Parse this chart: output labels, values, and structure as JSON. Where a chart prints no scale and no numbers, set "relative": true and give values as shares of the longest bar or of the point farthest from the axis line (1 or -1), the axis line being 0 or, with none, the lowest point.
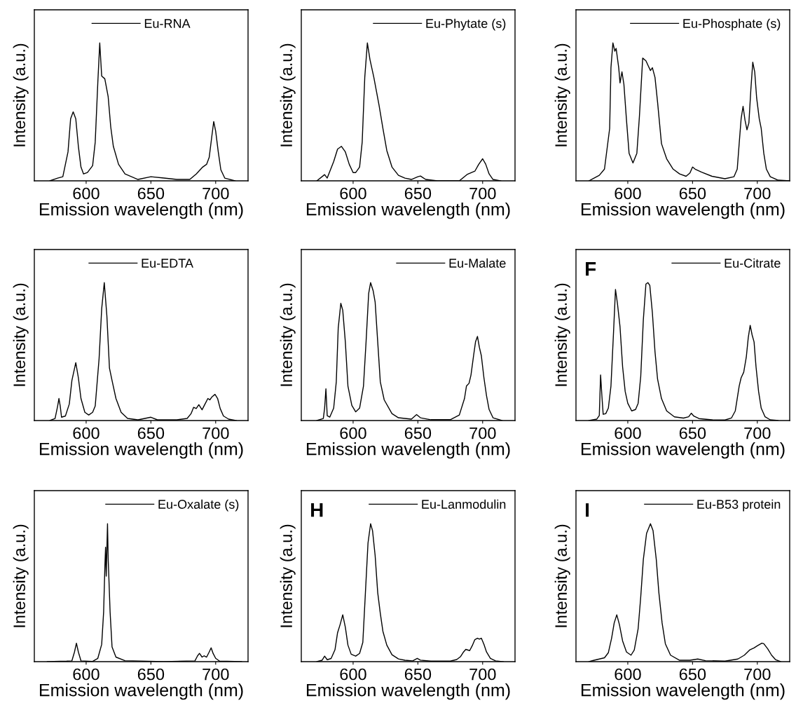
{
  "chart_data": [
    {
      "type": "line",
      "xlabel": "Emission wavelength (nm)",
      "ylabel": "Intensity (a.u.)",
      "relative": true,
      "xlim": [
        560,
        725
      ],
      "xticks": [
        600,
        650,
        700
      ],
      "tick_labels": "x",
      "legend": "top",
      "x": [
        572,
        578,
        582,
        586,
        588,
        590,
        592,
        594,
        596,
        598,
        601,
        605,
        607,
        609,
        610.5,
        612,
        614.4,
        617,
        619,
        621,
        625,
        630,
        640,
        650,
        660,
        670,
        680,
        685,
        690,
        693,
        695,
        697,
        698.5,
        700,
        702,
        704,
        707,
        715
      ],
      "series": [
        {
          "name": "Eu-RNA",
          "color": "#000000",
          "values": [
            0,
            0.02,
            0.03,
            0.21,
            0.45,
            0.5,
            0.45,
            0.25,
            0.1,
            0.05,
            0.06,
            0.11,
            0.28,
            0.71,
            1.0,
            0.76,
            0.74,
            0.61,
            0.39,
            0.25,
            0.12,
            0.05,
            0.01,
            0.03,
            0.02,
            0.01,
            0.01,
            0.05,
            0.1,
            0.12,
            0.17,
            0.32,
            0.43,
            0.36,
            0.21,
            0.08,
            0.02,
            0
          ]
        }
      ]
    },
    {
      "type": "line",
      "xlabel": "Emission wavelength (nm)",
      "ylabel": "Intensity (a.u.)",
      "relative": true,
      "xlim": [
        560,
        725
      ],
      "xticks": [
        600,
        650,
        700
      ],
      "tick_labels": "x",
      "legend": "top right",
      "x": [
        572,
        578,
        580,
        585,
        588,
        591,
        594,
        597,
        600,
        602,
        605,
        607,
        609,
        611,
        613,
        616,
        618,
        620,
        623,
        626,
        630,
        635,
        640,
        645,
        650,
        652,
        656,
        665,
        682,
        688,
        694,
        697,
        700,
        702.4,
        705,
        708,
        714
      ],
      "series": [
        {
          "name": "Eu-Phytate (s)",
          "color": "#000000",
          "values": [
            0,
            0.045,
            0.02,
            0.14,
            0.23,
            0.25,
            0.21,
            0.12,
            0.06,
            0.06,
            0.1,
            0.28,
            0.75,
            1.0,
            0.88,
            0.75,
            0.65,
            0.55,
            0.38,
            0.22,
            0.1,
            0.04,
            0.02,
            0.01,
            0.03,
            0.035,
            0.01,
            0,
            0,
            0.046,
            0.07,
            0.12,
            0.16,
            0.12,
            0.05,
            0.01,
            0
          ]
        }
      ]
    },
    {
      "type": "line",
      "xlabel": "Emission wavelength (nm)",
      "ylabel": "Intensity (a.u.)",
      "relative": true,
      "xlim": [
        560,
        725
      ],
      "xticks": [
        600,
        650,
        700
      ],
      "tick_labels": "x",
      "legend": "top right",
      "x": [
        570,
        578,
        582,
        586,
        587,
        588.5,
        590,
        591,
        593,
        594,
        595.5,
        597,
        599,
        601,
        604,
        607,
        609,
        611.5,
        614,
        616,
        617.5,
        619,
        621,
        623,
        626,
        630,
        635,
        640,
        645,
        648,
        650,
        652,
        657,
        665,
        675,
        682,
        684.5,
        686,
        687.5,
        689,
        690.5,
        692,
        693.5,
        695,
        696.5,
        698,
        699.5,
        701.5,
        703,
        705,
        707,
        710,
        716,
        725
      ],
      "series": [
        {
          "name": "Eu-Phosphate (s)",
          "color": "#000000",
          "values": [
            0,
            0.04,
            0.085,
            0.38,
            0.82,
            1.0,
            0.94,
            0.96,
            0.82,
            0.71,
            0.79,
            0.7,
            0.44,
            0.2,
            0.13,
            0.2,
            0.47,
            0.89,
            0.87,
            0.83,
            0.8,
            0.82,
            0.75,
            0.57,
            0.27,
            0.16,
            0.085,
            0.05,
            0.033,
            0.057,
            0.1,
            0.085,
            0.063,
            0.033,
            0.015,
            0.03,
            0.085,
            0.27,
            0.45,
            0.54,
            0.44,
            0.37,
            0.42,
            0.66,
            0.86,
            0.79,
            0.6,
            0.45,
            0.38,
            0.2,
            0.085,
            0.03,
            0.005,
            0
          ]
        }
      ]
    },
    {
      "type": "line",
      "xlabel": "Emission wavelength (nm)",
      "ylabel": "Intensity (a.u.)",
      "relative": true,
      "xlim": [
        560,
        725
      ],
      "xticks": [
        600,
        650,
        700
      ],
      "tick_labels": "x",
      "legend": "top",
      "x": [
        572,
        576,
        578,
        579,
        580,
        581,
        584,
        587,
        589,
        592,
        594,
        596,
        599,
        602,
        605,
        607,
        610,
        612,
        614,
        616,
        618,
        620,
        623,
        627,
        632,
        640,
        650,
        655,
        670,
        678,
        681,
        683,
        685,
        687,
        689.5,
        692,
        694,
        695.5,
        697,
        699.5,
        701.5,
        703.5,
        706,
        710,
        716
      ],
      "series": [
        {
          "name": "Eu-EDTA",
          "color": "#000000",
          "values": [
            0,
            0.015,
            0.105,
            0.16,
            0.105,
            0.024,
            0.033,
            0.12,
            0.29,
            0.42,
            0.31,
            0.16,
            0.06,
            0.04,
            0.06,
            0.105,
            0.45,
            0.81,
            1.0,
            0.76,
            0.38,
            0.29,
            0.16,
            0.06,
            0.015,
            0.005,
            0.024,
            0.005,
            0.005,
            0.015,
            0.05,
            0.096,
            0.087,
            0.115,
            0.078,
            0.124,
            0.16,
            0.15,
            0.17,
            0.19,
            0.16,
            0.087,
            0.033,
            0.01,
            0
          ]
        }
      ]
    },
    {
      "type": "line",
      "xlabel": "Emission wavelength (nm)",
      "ylabel": "Intensity (a.u.)",
      "relative": true,
      "xlim": [
        560,
        725
      ],
      "xticks": [
        600,
        650,
        700
      ],
      "tick_labels": "x",
      "legend": "top right",
      "x": [
        572,
        577,
        578,
        579,
        580,
        582,
        585,
        587,
        588.5,
        590.5,
        592,
        594,
        596,
        599,
        602,
        605,
        608,
        610,
        612,
        613.5,
        615.5,
        617,
        619,
        621,
        624,
        630,
        635,
        645,
        649,
        652,
        660,
        675,
        682,
        686,
        687.5,
        689.5,
        691,
        693,
        694.5,
        696,
        697.5,
        699,
        701,
        703,
        705,
        708,
        715
      ],
      "series": [
        {
          "name": "Eu-Malate",
          "color": "#000000",
          "values": [
            0,
            0.015,
            0.09,
            0.23,
            0.035,
            0.025,
            0.09,
            0.28,
            0.67,
            0.85,
            0.8,
            0.57,
            0.25,
            0.11,
            0.063,
            0.09,
            0.25,
            0.57,
            0.92,
            1.0,
            0.94,
            0.86,
            0.57,
            0.28,
            0.15,
            0.05,
            0.02,
            0.01,
            0.043,
            0.02,
            0.006,
            0.006,
            0.04,
            0.16,
            0.25,
            0.27,
            0.33,
            0.47,
            0.57,
            0.61,
            0.53,
            0.47,
            0.31,
            0.18,
            0.08,
            0.02,
            0
          ]
        }
      ]
    },
    {
      "type": "line",
      "xlabel": "Emission wavelength (nm)",
      "ylabel": "Intensity (a.u.)",
      "relative": true,
      "xlim": [
        560,
        725
      ],
      "xticks": [
        600,
        650,
        700
      ],
      "tick_labels": "x",
      "legend": "top right",
      "annotations": [
        "F"
      ],
      "x": [
        570,
        576,
        578,
        579,
        580,
        581,
        583,
        585,
        587,
        589,
        590.5,
        592,
        594,
        596,
        598,
        600,
        603,
        606,
        608,
        610,
        612,
        614,
        615.5,
        617,
        619,
        621,
        623,
        626,
        630,
        636,
        643,
        647,
        649,
        651,
        655,
        665,
        675,
        680,
        683,
        686,
        687.5,
        689.5,
        691.5,
        693,
        694.5,
        696,
        697.5,
        699,
        701,
        703,
        706,
        710,
        716
      ],
      "series": [
        {
          "name": "Eu-Citrate",
          "color": "#000000",
          "values": [
            0,
            0.01,
            0.036,
            0.33,
            0.18,
            0.045,
            0.05,
            0.09,
            0.25,
            0.64,
            0.95,
            0.85,
            0.68,
            0.39,
            0.21,
            0.125,
            0.07,
            0.08,
            0.125,
            0.32,
            0.73,
            0.99,
            1.0,
            0.98,
            0.78,
            0.5,
            0.3,
            0.16,
            0.07,
            0.027,
            0.018,
            0.027,
            0.053,
            0.032,
            0.014,
            0.005,
            0.004,
            0.018,
            0.07,
            0.25,
            0.31,
            0.35,
            0.46,
            0.6,
            0.69,
            0.62,
            0.57,
            0.39,
            0.21,
            0.09,
            0.027,
            0.005,
            0
          ]
        }
      ]
    },
    {
      "type": "line",
      "xlabel": "Emission wavelength (nm)",
      "ylabel": "Intensity (a.u.)",
      "relative": true,
      "xlim": [
        560,
        725
      ],
      "xticks": [
        600,
        650,
        700
      ],
      "tick_labels": "x",
      "legend": "top right",
      "x": [
        570,
        585,
        589,
        591,
        592.5,
        594,
        596,
        605,
        609,
        612,
        613.5,
        614.5,
        615,
        615.5,
        616,
        616.5,
        617,
        617.5,
        618.5,
        620,
        623,
        630,
        660,
        684,
        686,
        687.5,
        689.5,
        691,
        693,
        695,
        696.5,
        698,
        700,
        703,
        720
      ],
      "series": [
        {
          "name": "Eu-Oxalate (s)",
          "color": "#000000",
          "values": [
            0,
            0.004,
            0.006,
            0.07,
            0.134,
            0.07,
            0.006,
            0.002,
            0.024,
            0.125,
            0.36,
            0.7,
            0.83,
            0.62,
            0.81,
            1.0,
            0.75,
            0.62,
            0.36,
            0.107,
            0.033,
            0.007,
            0,
            0.006,
            0.042,
            0.06,
            0.033,
            0.042,
            0.033,
            0.07,
            0.1,
            0.06,
            0.024,
            0.004,
            0
          ]
        }
      ]
    },
    {
      "type": "line",
      "xlabel": "Emission wavelength (nm)",
      "ylabel": "Intensity (a.u.)",
      "relative": true,
      "xlim": [
        560,
        725
      ],
      "xticks": [
        600,
        650,
        700
      ],
      "tick_labels": "x",
      "legend": "top right",
      "annotations": [
        "H"
      ],
      "x": [
        572,
        576,
        578,
        580,
        583,
        586,
        588,
        590,
        592,
        594,
        596,
        598.5,
        602,
        605,
        607.5,
        609.5,
        611.5,
        613.5,
        615,
        617,
        619,
        621,
        623,
        626,
        630,
        635,
        640,
        646,
        649.5,
        652,
        660,
        675,
        680,
        683,
        685,
        687,
        690,
        692,
        694,
        696,
        697.5,
        699,
        701,
        703,
        706,
        710,
        716
      ],
      "series": [
        {
          "name": "Eu-Lanmodulin",
          "color": "#000000",
          "values": [
            0,
            0.01,
            0.04,
            0.014,
            0.023,
            0.086,
            0.21,
            0.27,
            0.34,
            0.25,
            0.12,
            0.054,
            0.04,
            0.06,
            0.14,
            0.5,
            0.86,
            1.0,
            0.95,
            0.77,
            0.5,
            0.35,
            0.22,
            0.12,
            0.05,
            0.02,
            0.01,
            0.006,
            0.024,
            0.011,
            0.004,
            0.004,
            0.015,
            0.037,
            0.067,
            0.089,
            0.08,
            0.116,
            0.16,
            0.17,
            0.163,
            0.17,
            0.126,
            0.07,
            0.024,
            0.006,
            0
          ]
        }
      ]
    },
    {
      "type": "line",
      "xlabel": "Emission wavelength (nm)",
      "ylabel": "Intensity (a.u.)",
      "relative": true,
      "xlim": [
        560,
        725
      ],
      "xticks": [
        600,
        650,
        700
      ],
      "tick_labels": "x",
      "legend": "top right",
      "annotations": [
        "I"
      ],
      "x": [
        570,
        574,
        578,
        582,
        585,
        587.5,
        589.5,
        591.5,
        593.5,
        596,
        599,
        602.5,
        605,
        608,
        610,
        612,
        614.5,
        617.5,
        619.5,
        622,
        624,
        626.5,
        629,
        633,
        640,
        648,
        654,
        660,
        675,
        685,
        690,
        694,
        697.5,
        700,
        703.5,
        705,
        708,
        711,
        714,
        718
      ],
      "series": [
        {
          "name": "Eu-B53 protein",
          "color": "#000000",
          "values": [
            0,
            0.01,
            0.019,
            0.028,
            0.065,
            0.17,
            0.28,
            0.34,
            0.27,
            0.15,
            0.07,
            0.047,
            0.084,
            0.24,
            0.47,
            0.74,
            0.93,
            1.0,
            0.95,
            0.74,
            0.5,
            0.28,
            0.13,
            0.047,
            0.01,
            0.01,
            0.019,
            0.007,
            0.004,
            0.019,
            0.047,
            0.084,
            0.1,
            0.115,
            0.134,
            0.13,
            0.093,
            0.047,
            0.015,
            0
          ]
        }
      ]
    }
  ]
}
